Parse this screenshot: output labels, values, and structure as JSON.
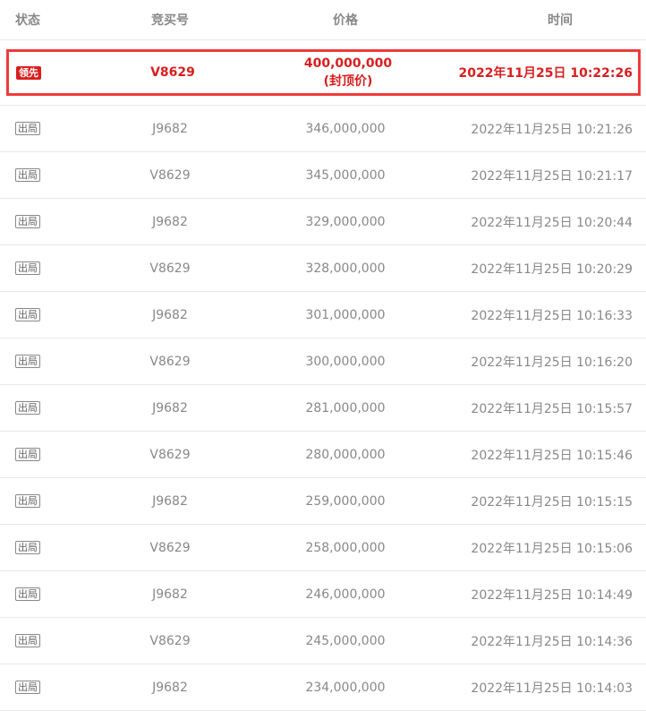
{
  "header": {
    "status": "状态",
    "bidder": "竞买号",
    "price": "价格",
    "time": "时间"
  },
  "leader": {
    "status": "领先",
    "bidder": "V8629",
    "price": "400,000,000",
    "price_note": "(封顶价)",
    "time": "2022年11月25日 10:22:26",
    "highlight_color": "#f03a3a",
    "text_color": "#d81e1e"
  },
  "rows": [
    {
      "status": "出局",
      "bidder": "J9682",
      "price": "346,000,000",
      "time": "2022年11月25日 10:21:26"
    },
    {
      "status": "出局",
      "bidder": "V8629",
      "price": "345,000,000",
      "time": "2022年11月25日 10:21:17"
    },
    {
      "status": "出局",
      "bidder": "J9682",
      "price": "329,000,000",
      "time": "2022年11月25日 10:20:44"
    },
    {
      "status": "出局",
      "bidder": "V8629",
      "price": "328,000,000",
      "time": "2022年11月25日 10:20:29"
    },
    {
      "status": "出局",
      "bidder": "J9682",
      "price": "301,000,000",
      "time": "2022年11月25日 10:16:33"
    },
    {
      "status": "出局",
      "bidder": "V8629",
      "price": "300,000,000",
      "time": "2022年11月25日 10:16:20"
    },
    {
      "status": "出局",
      "bidder": "J9682",
      "price": "281,000,000",
      "time": "2022年11月25日 10:15:57"
    },
    {
      "status": "出局",
      "bidder": "V8629",
      "price": "280,000,000",
      "time": "2022年11月25日 10:15:46"
    },
    {
      "status": "出局",
      "bidder": "J9682",
      "price": "259,000,000",
      "time": "2022年11月25日 10:15:15"
    },
    {
      "status": "出局",
      "bidder": "V8629",
      "price": "258,000,000",
      "time": "2022年11月25日 10:15:06"
    },
    {
      "status": "出局",
      "bidder": "J9682",
      "price": "246,000,000",
      "time": "2022年11月25日 10:14:49"
    },
    {
      "status": "出局",
      "bidder": "V8629",
      "price": "245,000,000",
      "time": "2022年11月25日 10:14:36"
    },
    {
      "status": "出局",
      "bidder": "J9682",
      "price": "234,000,000",
      "time": "2022年11月25日 10:14:03"
    }
  ]
}
